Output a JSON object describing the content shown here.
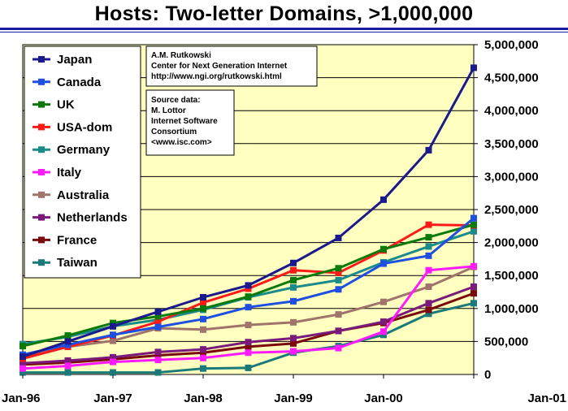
{
  "chart_data": {
    "type": "line",
    "title": "Hosts: Two-letter Domains, >1,000,000",
    "x": [
      "Jan-96",
      "Jul-96",
      "Jan-97",
      "Jul-97",
      "Jan-98",
      "Jul-98",
      "Jan-99",
      "Jul-99",
      "Jan-00",
      "Jul-00",
      "Jan-01"
    ],
    "x_tick_labels": [
      "Jan-96",
      "Jan-97",
      "Jan-98",
      "Jan-99",
      "Jan-00",
      "Jan-01"
    ],
    "y_tick_labels": [
      "0",
      "500,000",
      "1,000,000",
      "1,500,000",
      "2,000,000",
      "2,500,000",
      "3,000,000",
      "3,500,000",
      "4,000,000",
      "4,500,000",
      "5,000,000"
    ],
    "ylim": [
      0,
      5000000
    ],
    "grid": true,
    "legend_position": "top-left",
    "series": [
      {
        "name": "Japan",
        "color": "#1a1a8c",
        "values": [
          270000,
          500000,
          730000,
          950000,
          1170000,
          1350000,
          1690000,
          2070000,
          2650000,
          3400000,
          4650000
        ]
      },
      {
        "name": "Canada",
        "color": "#1f4fe0",
        "values": [
          300000,
          450000,
          600000,
          720000,
          840000,
          1020000,
          1110000,
          1290000,
          1680000,
          1800000,
          2370000
        ]
      },
      {
        "name": "UK",
        "color": "#0b7a0b",
        "values": [
          430000,
          590000,
          780000,
          880000,
          1000000,
          1180000,
          1430000,
          1610000,
          1900000,
          2080000,
          2270000
        ]
      },
      {
        "name": "USA-dom",
        "color": "#ff1a1a",
        "values": [
          240000,
          420000,
          590000,
          800000,
          1090000,
          1300000,
          1580000,
          1540000,
          1880000,
          2270000,
          2260000
        ]
      },
      {
        "name": "Germany",
        "color": "#1a8a8a",
        "values": [
          460000,
          570000,
          730000,
          830000,
          980000,
          1170000,
          1320000,
          1430000,
          1700000,
          1940000,
          2170000
        ]
      },
      {
        "name": "Italy",
        "color": "#ff1aff",
        "values": [
          90000,
          130000,
          190000,
          220000,
          250000,
          330000,
          350000,
          400000,
          650000,
          1580000,
          1640000
        ]
      },
      {
        "name": "Australia",
        "color": "#a0736b",
        "values": [
          280000,
          420000,
          510000,
          700000,
          680000,
          750000,
          790000,
          910000,
          1100000,
          1330000,
          1630000
        ]
      },
      {
        "name": "Netherlands",
        "color": "#7a1a7a",
        "values": [
          170000,
          210000,
          260000,
          340000,
          380000,
          490000,
          550000,
          660000,
          800000,
          1080000,
          1330000
        ]
      },
      {
        "name": "France",
        "color": "#7a0a0a",
        "values": [
          150000,
          180000,
          230000,
          290000,
          330000,
          420000,
          470000,
          660000,
          780000,
          980000,
          1230000
        ]
      },
      {
        "name": "Taiwan",
        "color": "#1a7a7a",
        "values": [
          30000,
          30000,
          30000,
          30000,
          90000,
          100000,
          330000,
          430000,
          600000,
          920000,
          1080000
        ]
      }
    ]
  },
  "legend": {
    "items": [
      "Japan",
      "Canada",
      "UK",
      "USA-dom",
      "Germany",
      "Italy",
      "Australia",
      "Netherlands",
      "France",
      "Taiwan"
    ]
  },
  "notes": {
    "credit": [
      "A.M. Rutkowski",
      "Center for Next Generation Internet",
      "http://www.ngi.org/rutkowski.html"
    ],
    "source": [
      "Source data:",
      "M. Lottor",
      "Internet Software",
      "Consortium",
      "<www.isc.com>"
    ]
  },
  "colors": {
    "plot_bg": "#ffffc0",
    "title_rule": "#1a1aa0"
  }
}
